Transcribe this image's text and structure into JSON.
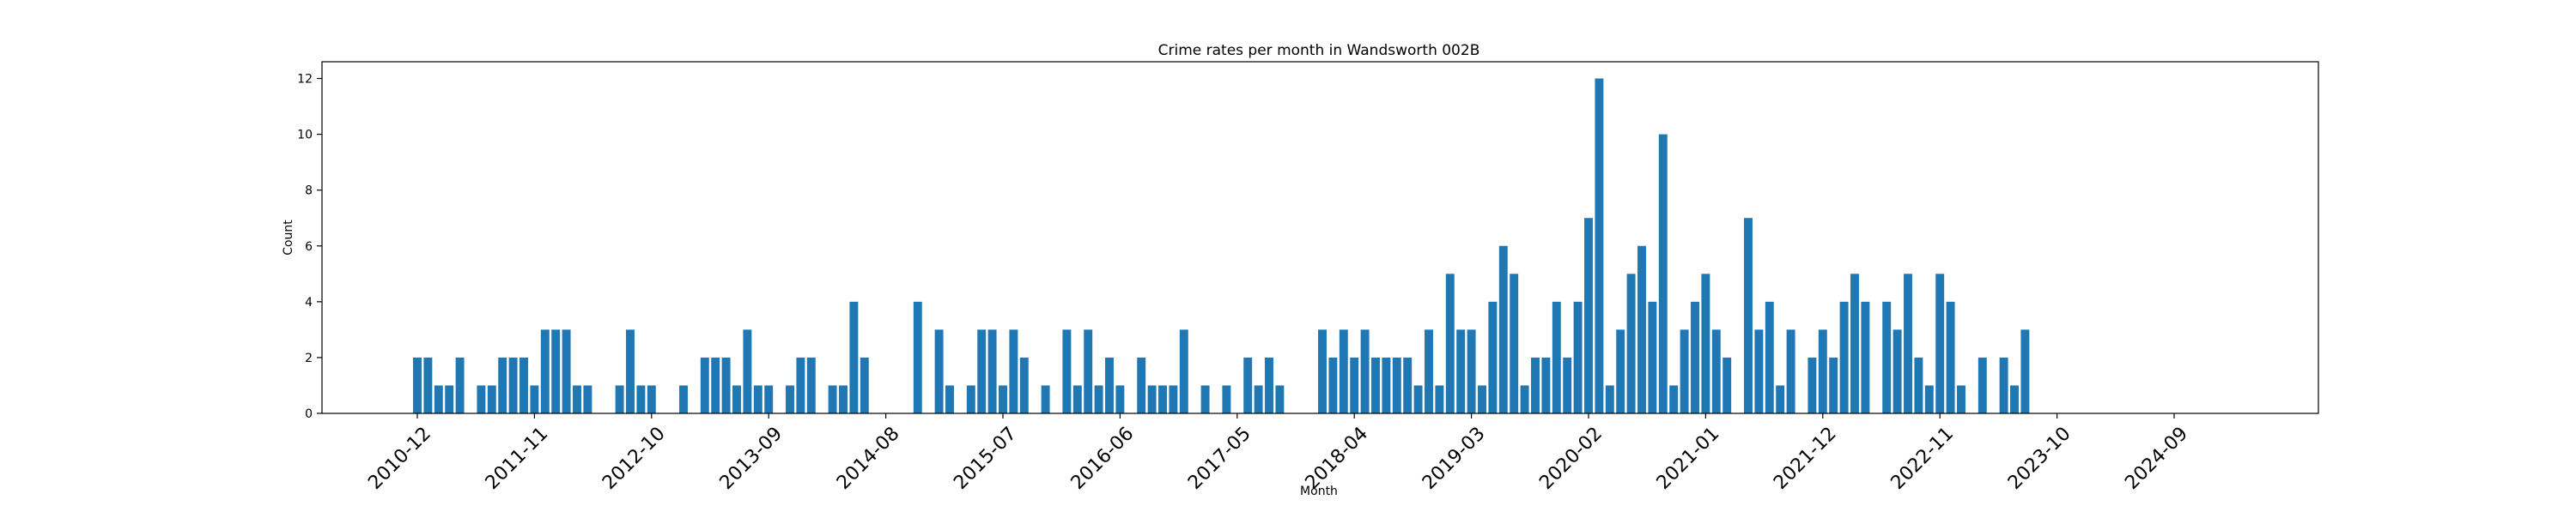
{
  "chart_data": {
    "type": "bar",
    "title": "Crime rates per month in Wandsworth 002B",
    "xlabel": "Month",
    "ylabel": "Count",
    "ylim": [
      0,
      12.6
    ],
    "yticks": [
      "0",
      "2",
      "4",
      "6",
      "8",
      "10",
      "12"
    ],
    "xticks": [
      "2010-12",
      "2011-11",
      "2012-10",
      "2013-09",
      "2014-08",
      "2015-07",
      "2016-06",
      "2017-05",
      "2018-04",
      "2019-03",
      "2020-02",
      "2021-01",
      "2021-12",
      "2022-11",
      "2023-10",
      "2024-09"
    ],
    "bar_color": "#1f77b4",
    "grid": false,
    "legend": "none",
    "categories": [
      "2010-12",
      "2011-01",
      "2011-02",
      "2011-03",
      "2011-04",
      "2011-05",
      "2011-06",
      "2011-07",
      "2011-08",
      "2011-09",
      "2011-10",
      "2011-11",
      "2011-12",
      "2012-01",
      "2012-02",
      "2012-03",
      "2012-04",
      "2012-05",
      "2012-06",
      "2012-07",
      "2012-08",
      "2012-09",
      "2012-10",
      "2012-11",
      "2012-12",
      "2013-01",
      "2013-02",
      "2013-03",
      "2013-04",
      "2013-05",
      "2013-06",
      "2013-07",
      "2013-08",
      "2013-09",
      "2013-10",
      "2013-11",
      "2013-12",
      "2014-01",
      "2014-02",
      "2014-03",
      "2014-04",
      "2014-05",
      "2014-06",
      "2014-07",
      "2014-08",
      "2014-09",
      "2014-10",
      "2014-11",
      "2014-12",
      "2015-01",
      "2015-02",
      "2015-03",
      "2015-04",
      "2015-05",
      "2015-06",
      "2015-07",
      "2015-08",
      "2015-09",
      "2015-10",
      "2015-11",
      "2015-12",
      "2016-01",
      "2016-02",
      "2016-03",
      "2016-04",
      "2016-05",
      "2016-06",
      "2016-07",
      "2016-08",
      "2016-09",
      "2016-10",
      "2016-11",
      "2016-12",
      "2017-01",
      "2017-02",
      "2017-03",
      "2017-04",
      "2017-05",
      "2017-06",
      "2017-07",
      "2017-08",
      "2017-09",
      "2017-10",
      "2017-11",
      "2017-12",
      "2018-01",
      "2018-02",
      "2018-03",
      "2018-04",
      "2018-05",
      "2018-06",
      "2018-07",
      "2018-08",
      "2018-09",
      "2018-10",
      "2018-11",
      "2018-12",
      "2019-01",
      "2019-02",
      "2019-03",
      "2019-04",
      "2019-05",
      "2019-06",
      "2019-07",
      "2019-08",
      "2019-09",
      "2019-10",
      "2019-11",
      "2019-12",
      "2020-01",
      "2020-02",
      "2020-03",
      "2020-04",
      "2020-05",
      "2020-06",
      "2020-07",
      "2020-08",
      "2020-09",
      "2020-10",
      "2020-11",
      "2020-12",
      "2021-01",
      "2021-02",
      "2021-03",
      "2021-04",
      "2021-05",
      "2021-06",
      "2021-07",
      "2021-08",
      "2021-09",
      "2021-10",
      "2021-11",
      "2021-12",
      "2022-01",
      "2022-02",
      "2022-03",
      "2022-04",
      "2022-05",
      "2022-06",
      "2022-07",
      "2022-08",
      "2022-09",
      "2022-10",
      "2022-11",
      "2022-12",
      "2023-01",
      "2023-02",
      "2023-03",
      "2023-04",
      "2023-05",
      "2023-06",
      "2023-07",
      "2023-08",
      "2023-09",
      "2023-10",
      "2023-11",
      "2023-12",
      "2024-01",
      "2024-02",
      "2024-03",
      "2024-04",
      "2024-05",
      "2024-06",
      "2024-07",
      "2024-08",
      "2024-09",
      "2024-10",
      "2024-11"
    ],
    "values": [
      2,
      2,
      1,
      1,
      2,
      0,
      1,
      1,
      2,
      2,
      2,
      1,
      3,
      3,
      3,
      1,
      1,
      0,
      0,
      1,
      3,
      1,
      1,
      0,
      0,
      1,
      0,
      2,
      2,
      2,
      1,
      3,
      1,
      1,
      0,
      1,
      2,
      2,
      0,
      1,
      1,
      4,
      2,
      0,
      0,
      0,
      0,
      4,
      0,
      3,
      1,
      0,
      1,
      3,
      3,
      1,
      3,
      2,
      0,
      1,
      0,
      3,
      1,
      3,
      1,
      2,
      1,
      0,
      2,
      1,
      1,
      1,
      3,
      0,
      1,
      0,
      1,
      0,
      2,
      1,
      2,
      1,
      0,
      0,
      0,
      3,
      2,
      3,
      2,
      3,
      2,
      2,
      2,
      2,
      1,
      3,
      1,
      5,
      3,
      3,
      1,
      4,
      6,
      5,
      1,
      2,
      2,
      4,
      2,
      4,
      7,
      12,
      1,
      3,
      5,
      6,
      4,
      10,
      1,
      3,
      4,
      5,
      3,
      2,
      0,
      7,
      3,
      4,
      1,
      3,
      0,
      2,
      3,
      2,
      4,
      5,
      4,
      0,
      4,
      3,
      5,
      2,
      1,
      5,
      4,
      1,
      0,
      2,
      0,
      2,
      1,
      3,
      0,
      0,
      0,
      0,
      0,
      0,
      0,
      0,
      0,
      0,
      0,
      0,
      0,
      0,
      0,
      0
    ]
  }
}
